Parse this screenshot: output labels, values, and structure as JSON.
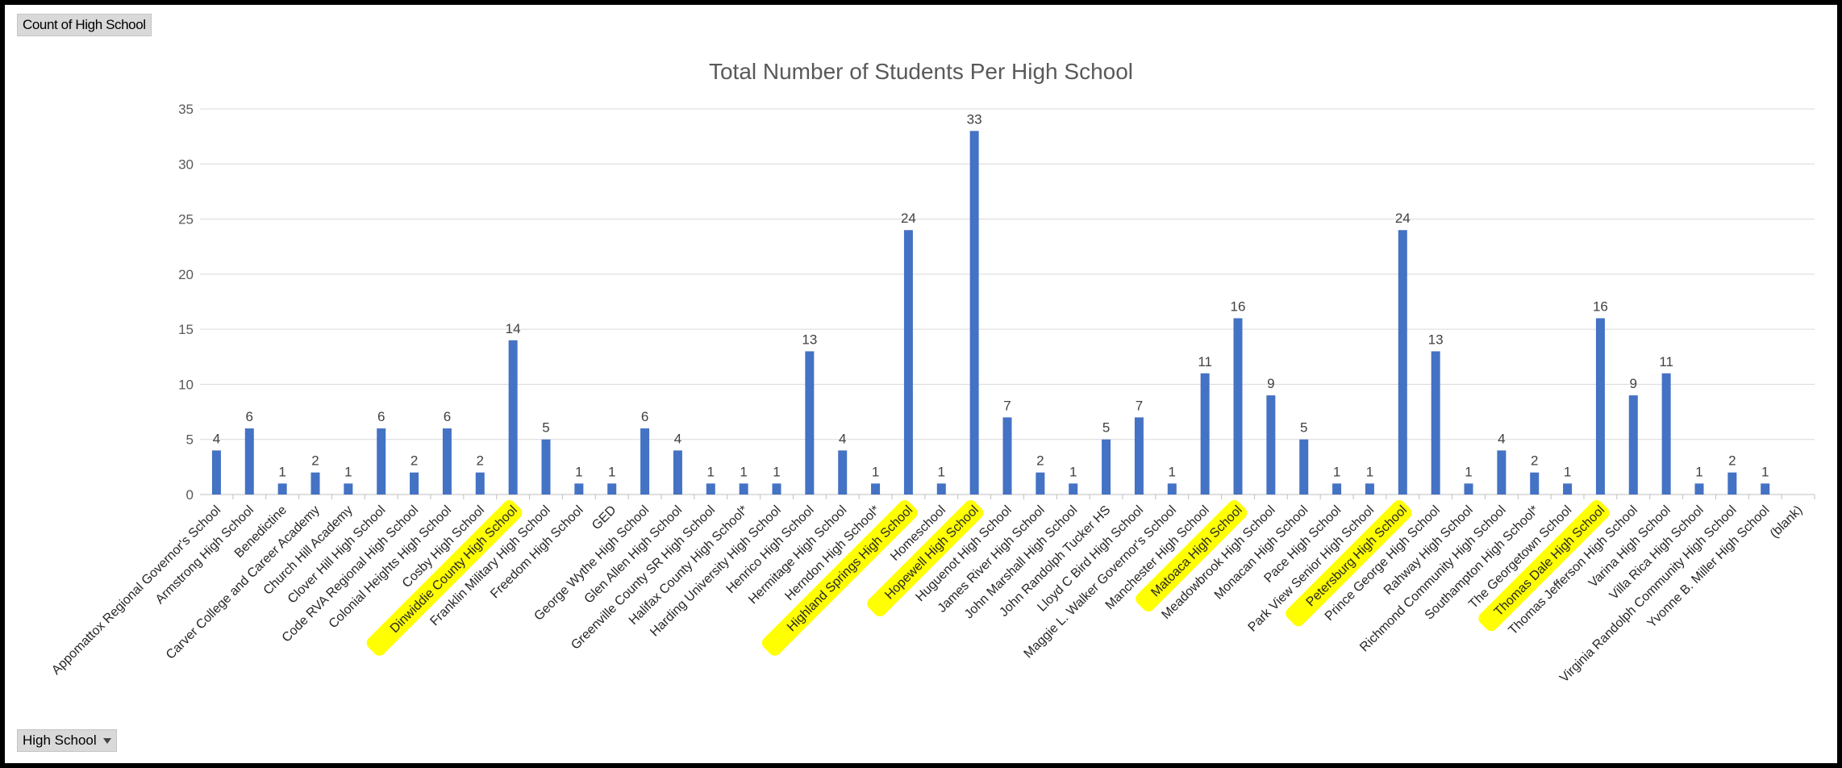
{
  "pivot": {
    "value_field": "Count of High School",
    "axis_field": "High School"
  },
  "colors": {
    "bar": "#4472c4",
    "highlight": "#ffff00",
    "grid": "#d9d9d9",
    "text": "#595959"
  },
  "chart_data": {
    "type": "bar",
    "title": "Total Number of Students Per High School",
    "xlabel": "",
    "ylabel": "",
    "ylim": [
      0,
      35
    ],
    "yticks": [
      0,
      5,
      10,
      15,
      20,
      25,
      30,
      35
    ],
    "grid": true,
    "legend": "none",
    "categories": [
      "Appomattox Regional Governor's School",
      "Armstrong High School",
      "Benedictine",
      "Carver College and Career Academy",
      "Church Hill Academy",
      "Clover Hill High School",
      "Code RVA Regional High School",
      "Colonial Heights High School",
      "Cosby High School",
      "Dinwiddie County High School",
      "Franklin Military High School",
      "Freedom High School",
      "GED",
      "George Wythe High School",
      "Glen Allen High School",
      "Greenville County SR High School",
      "Halifax County High School*",
      "Harding University High School",
      "Henrico High School",
      "Hermitage High School",
      "Herndon High School*",
      "Highland Springs High School",
      "Homeschool",
      "Hopewell High School",
      "Huguenot High School",
      "James River High School",
      "John Marshall High School",
      "John Randolph Tucker HS",
      "Lloyd C Bird High School",
      "Maggie L. Walker Governor's School",
      "Manchester High School",
      "Matoaca High School",
      "Meadowbrook High School",
      "Monacan High School",
      "Pace High School",
      "Park View Senior High School",
      "Petersburg High School",
      "Prince George High School",
      "Rahway High School",
      "Richmond Community High School",
      "Southampton High School*",
      "The Georgetown School",
      "Thomas Dale High School",
      "Thomas Jefferson High School",
      "Varina High School",
      "Villa Rica High School",
      "Virginia Randolph Community High School",
      "Yvonne B. Miller High School",
      "(blank)"
    ],
    "values": [
      4,
      6,
      1,
      2,
      1,
      6,
      2,
      6,
      2,
      14,
      5,
      1,
      1,
      6,
      4,
      1,
      1,
      1,
      13,
      4,
      1,
      24,
      1,
      33,
      7,
      2,
      1,
      5,
      7,
      1,
      11,
      16,
      9,
      5,
      1,
      1,
      24,
      13,
      1,
      4,
      2,
      1,
      16,
      9,
      11,
      1,
      2,
      1,
      null
    ],
    "highlighted_categories": [
      "Dinwiddie County High School",
      "Highland Springs High School",
      "Hopewell High School",
      "Matoaca High School",
      "Petersburg High School",
      "Thomas Dale High School"
    ]
  }
}
